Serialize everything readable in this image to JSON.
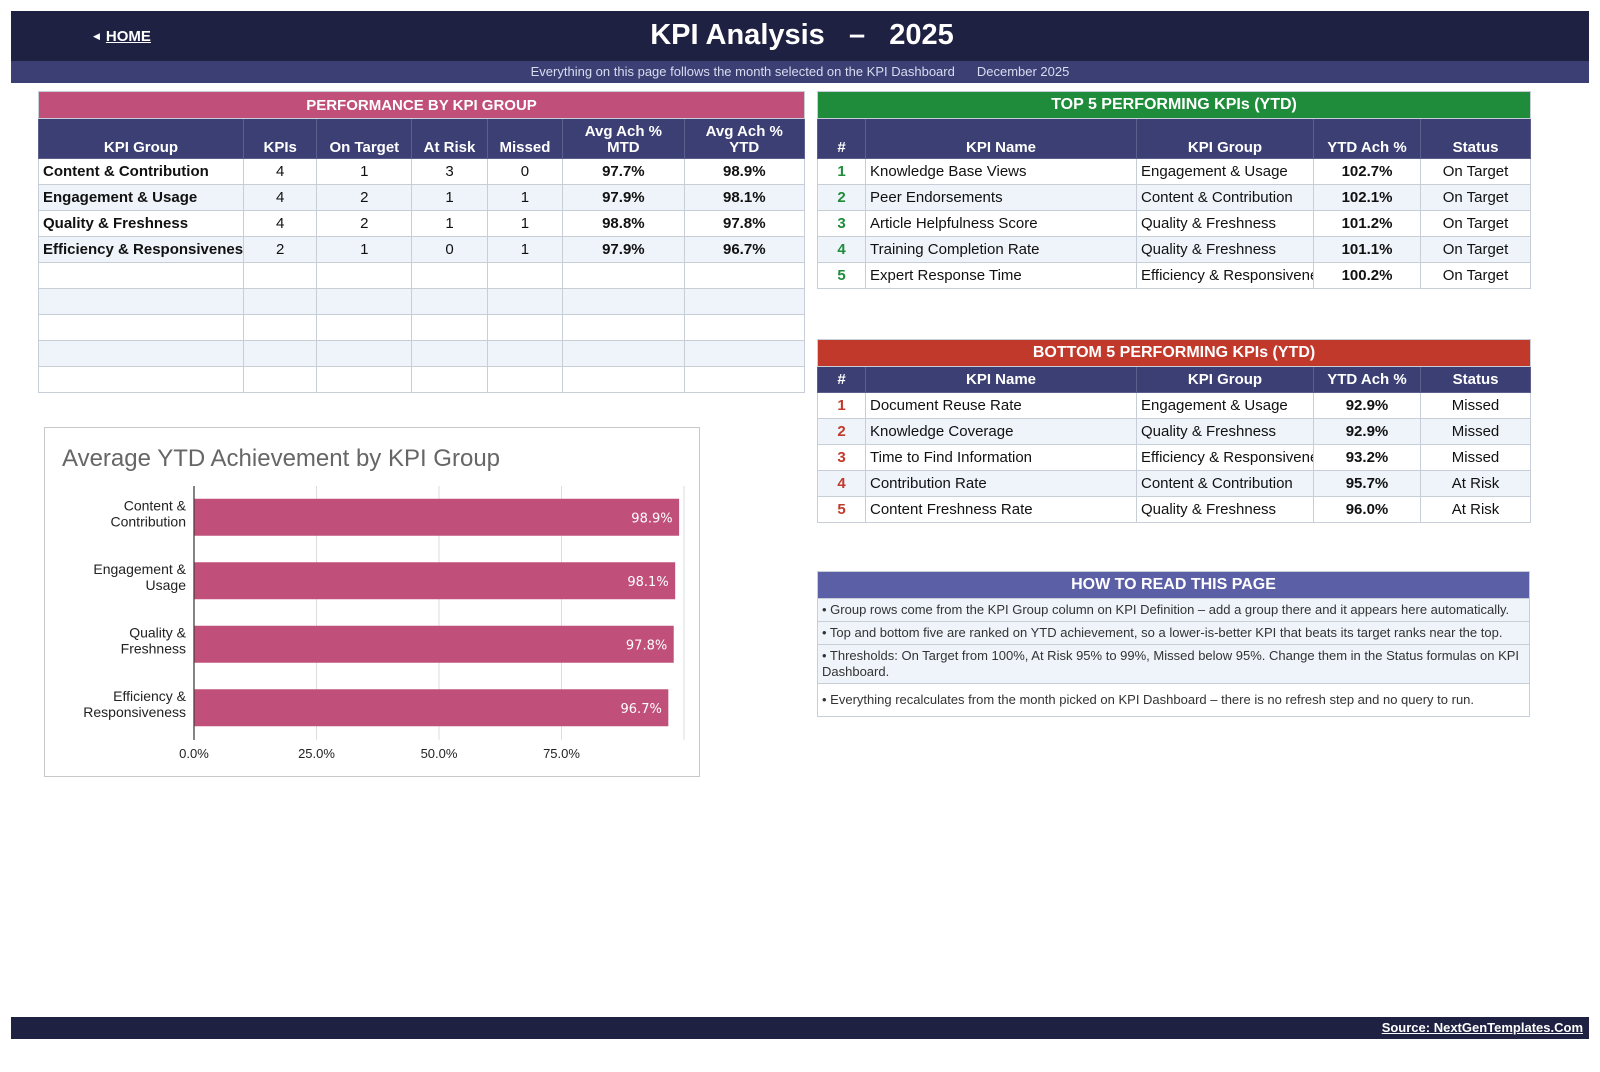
{
  "header": {
    "home_label": "HOME",
    "title": "KPI Analysis   –   2025",
    "subtitle": "Everything on this page follows the month selected on the KPI Dashboard",
    "month": "December 2025"
  },
  "performance": {
    "band_title": "PERFORMANCE BY KPI GROUP",
    "band_color": "#c0507a",
    "columns": [
      "KPI Group",
      "KPIs",
      "On Target",
      "At Risk",
      "Missed",
      "Avg Ach %\nMTD",
      "Avg Ach %\nYTD"
    ],
    "rows": [
      [
        "Content & Contribution",
        "4",
        "1",
        "3",
        "0",
        "97.7%",
        "98.9%"
      ],
      [
        "Engagement & Usage",
        "4",
        "2",
        "1",
        "1",
        "97.9%",
        "98.1%"
      ],
      [
        "Quality & Freshness",
        "4",
        "2",
        "1",
        "1",
        "98.8%",
        "97.8%"
      ],
      [
        "Efficiency & Responsiveness",
        "2",
        "1",
        "0",
        "1",
        "97.9%",
        "96.7%"
      ]
    ],
    "empty_rows": 5
  },
  "top5": {
    "band_title": "TOP 5 PERFORMING KPIs  (YTD)",
    "band_color": "#1e8c3b",
    "columns": [
      "#",
      "KPI Name",
      "KPI Group",
      "YTD Ach %",
      "Status"
    ],
    "rows": [
      [
        "1",
        "Knowledge Base Views",
        "Engagement & Usage",
        "102.7%",
        "On Target"
      ],
      [
        "2",
        "Peer Endorsements",
        "Content & Contribution",
        "102.1%",
        "On Target"
      ],
      [
        "3",
        "Article Helpfulness Score",
        "Quality & Freshness",
        "101.2%",
        "On Target"
      ],
      [
        "4",
        "Training Completion Rate",
        "Quality & Freshness",
        "101.1%",
        "On Target"
      ],
      [
        "5",
        "Expert Response Time",
        "Efficiency & Responsiveness",
        "100.2%",
        "On Target"
      ]
    ]
  },
  "bottom5": {
    "band_title": "BOTTOM 5 PERFORMING KPIs  (YTD)",
    "band_color": "#c0392b",
    "columns": [
      "#",
      "KPI Name",
      "KPI Group",
      "YTD Ach %",
      "Status"
    ],
    "rows": [
      [
        "1",
        "Document Reuse Rate",
        "Engagement & Usage",
        "92.9%",
        "Missed"
      ],
      [
        "2",
        "Knowledge Coverage",
        "Quality & Freshness",
        "92.9%",
        "Missed"
      ],
      [
        "3",
        "Time to Find Information",
        "Efficiency & Responsiveness",
        "93.2%",
        "Missed"
      ],
      [
        "4",
        "Contribution Rate",
        "Content & Contribution",
        "95.7%",
        "At Risk"
      ],
      [
        "5",
        "Content Freshness Rate",
        "Quality & Freshness",
        "96.0%",
        "At Risk"
      ]
    ]
  },
  "howto": {
    "title": "HOW TO READ THIS PAGE",
    "items": [
      "•  Group rows come from the KPI Group column on KPI Definition – add a group there and it appears here automatically.",
      "•  Top and bottom five are ranked on YTD achievement, so a lower-is-better KPI that beats its target ranks near the top.",
      "•  Thresholds: On Target from 100%, At Risk 95% to 99%, Missed below 95%. Change them in the Status formulas on KPI Dashboard.",
      "•  Everything recalculates from the month picked on KPI Dashboard – there is no refresh step and no query to run."
    ]
  },
  "chart_data": {
    "type": "bar",
    "orientation": "horizontal",
    "title": "Average YTD Achievement by KPI Group",
    "categories": [
      "Content & Contribution",
      "Engagement & Usage",
      "Quality & Freshness",
      "Efficiency & Responsiveness"
    ],
    "category_label_lines": [
      [
        "Content &",
        "Contribution"
      ],
      [
        "Engagement &",
        "Usage"
      ],
      [
        "Quality &",
        "Freshness"
      ],
      [
        "Efficiency &",
        "Responsiveness"
      ]
    ],
    "values": [
      98.9,
      98.1,
      97.8,
      96.7
    ],
    "data_labels": [
      "98.9%",
      "98.1%",
      "97.8%",
      "96.7%"
    ],
    "xlim": [
      0,
      100
    ],
    "ticks": [
      0,
      25,
      50,
      75
    ],
    "tick_labels": [
      "0.0%",
      "25.0%",
      "50.0%",
      "75.0%"
    ],
    "grid": true,
    "bar_color": "#c0507a",
    "xlabel": "",
    "ylabel": ""
  },
  "footer": {
    "source": "Source: NextGenTemplates.Com"
  },
  "colors": {
    "navy": "#1e2141",
    "header_blue": "#3b3f73",
    "howto_blue": "#5b5fa6"
  }
}
